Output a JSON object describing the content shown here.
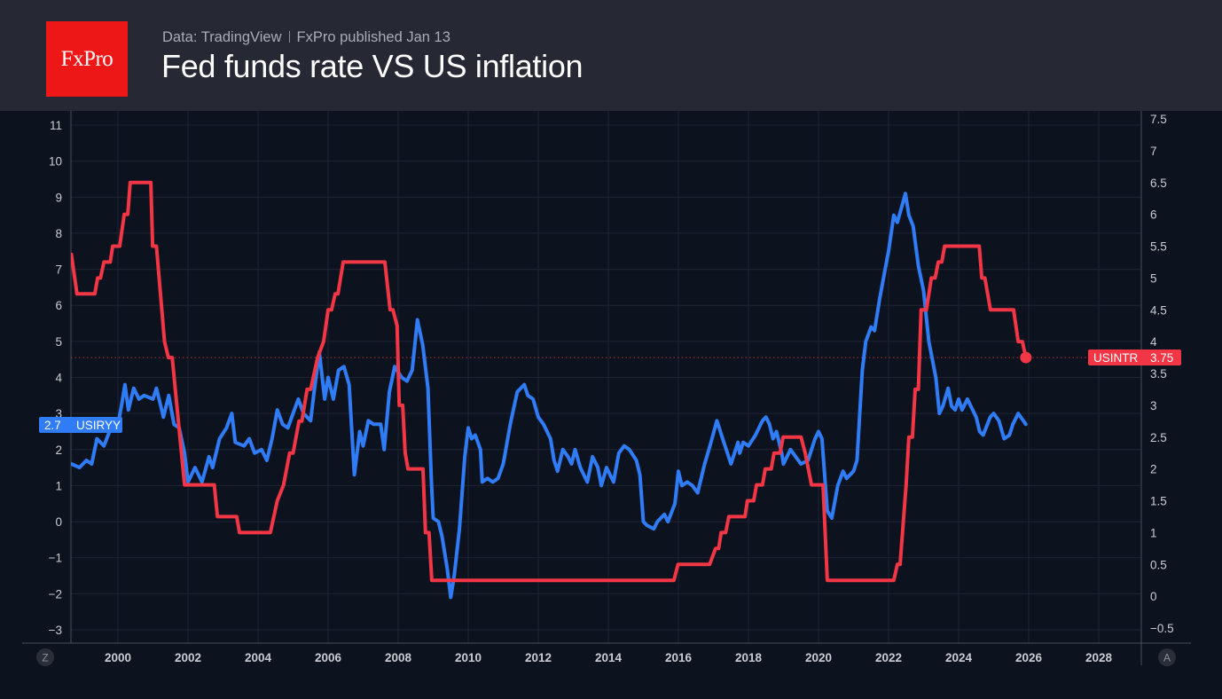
{
  "header": {
    "logo_text": "FxPro",
    "source": "Data: TradingView",
    "published": "FxPro published Jan 13",
    "title": "Fed funds rate VS US inflation"
  },
  "axis_buttons": {
    "left": "Z",
    "right": "A"
  },
  "colors": {
    "inflation": "#2f7cf6",
    "fed_rate": "#f23645",
    "background": "#0c121e",
    "header": "#262833",
    "logo": "#ee1717"
  },
  "chart_data": {
    "type": "line",
    "title": "Fed funds rate VS US inflation",
    "xlabel": "",
    "ylabel": "",
    "grid": true,
    "x_ticks": [
      "2000",
      "2002",
      "2004",
      "2006",
      "2008",
      "2010",
      "2012",
      "2014",
      "2016",
      "2018",
      "2020",
      "2022",
      "2024",
      "2026",
      "2028"
    ],
    "xlim": [
      1998.67,
      2029.2
    ],
    "left_axis": {
      "ylim": [
        -3.3,
        11.4
      ],
      "ticks": [
        "11",
        "10",
        "9",
        "8",
        "7",
        "6",
        "5",
        "4",
        "3",
        "2",
        "1",
        "0",
        "−1",
        "−2",
        "−3"
      ]
    },
    "right_axis": {
      "ylim": [
        -0.55,
        7.6
      ],
      "ticks": [
        "7.5",
        "7",
        "6.5",
        "6",
        "5.5",
        "5",
        "4.5",
        "4",
        "3.5",
        "3",
        "2.5",
        "2",
        "1.5",
        "1",
        "0.5",
        "0",
        "−0.5"
      ]
    },
    "series": [
      {
        "name": "USIRYY",
        "axis": "left",
        "last_value": "2.7",
        "points": [
          [
            1998.67,
            1.6
          ],
          [
            1998.9,
            1.5
          ],
          [
            1999.1,
            1.7
          ],
          [
            1999.25,
            1.6
          ],
          [
            1999.4,
            2.3
          ],
          [
            1999.6,
            2.1
          ],
          [
            1999.8,
            2.6
          ],
          [
            2000.0,
            2.7
          ],
          [
            2000.1,
            3.2
          ],
          [
            2000.2,
            3.8
          ],
          [
            2000.3,
            3.1
          ],
          [
            2000.45,
            3.7
          ],
          [
            2000.6,
            3.4
          ],
          [
            2000.75,
            3.5
          ],
          [
            2001.0,
            3.4
          ],
          [
            2001.1,
            3.7
          ],
          [
            2001.3,
            2.9
          ],
          [
            2001.45,
            3.5
          ],
          [
            2001.6,
            2.7
          ],
          [
            2001.75,
            2.6
          ],
          [
            2001.9,
            1.9
          ],
          [
            2002.0,
            1.1
          ],
          [
            2002.2,
            1.5
          ],
          [
            2002.4,
            1.1
          ],
          [
            2002.6,
            1.8
          ],
          [
            2002.7,
            1.5
          ],
          [
            2002.9,
            2.3
          ],
          [
            2003.1,
            2.6
          ],
          [
            2003.25,
            3.0
          ],
          [
            2003.35,
            2.2
          ],
          [
            2003.6,
            2.1
          ],
          [
            2003.75,
            2.3
          ],
          [
            2003.9,
            1.9
          ],
          [
            2004.1,
            2.0
          ],
          [
            2004.25,
            1.7
          ],
          [
            2004.4,
            2.3
          ],
          [
            2004.55,
            3.1
          ],
          [
            2004.7,
            2.7
          ],
          [
            2004.85,
            2.6
          ],
          [
            2005.0,
            3.0
          ],
          [
            2005.15,
            3.4
          ],
          [
            2005.3,
            3.0
          ],
          [
            2005.5,
            2.8
          ],
          [
            2005.6,
            3.6
          ],
          [
            2005.75,
            4.7
          ],
          [
            2005.9,
            3.4
          ],
          [
            2006.0,
            4.0
          ],
          [
            2006.15,
            3.4
          ],
          [
            2006.3,
            4.2
          ],
          [
            2006.45,
            4.3
          ],
          [
            2006.6,
            3.8
          ],
          [
            2006.75,
            1.3
          ],
          [
            2006.9,
            2.5
          ],
          [
            2007.0,
            2.1
          ],
          [
            2007.15,
            2.8
          ],
          [
            2007.3,
            2.7
          ],
          [
            2007.5,
            2.7
          ],
          [
            2007.6,
            2.0
          ],
          [
            2007.75,
            3.6
          ],
          [
            2007.9,
            4.3
          ],
          [
            2008.1,
            4.0
          ],
          [
            2008.25,
            3.9
          ],
          [
            2008.4,
            4.2
          ],
          [
            2008.55,
            5.6
          ],
          [
            2008.7,
            4.9
          ],
          [
            2008.85,
            3.7
          ],
          [
            2008.95,
            1.1
          ],
          [
            2009.0,
            0.1
          ],
          [
            2009.15,
            0.0
          ],
          [
            2009.25,
            -0.4
          ],
          [
            2009.4,
            -1.3
          ],
          [
            2009.5,
            -2.1
          ],
          [
            2009.6,
            -1.5
          ],
          [
            2009.75,
            -0.2
          ],
          [
            2009.9,
            1.8
          ],
          [
            2010.0,
            2.6
          ],
          [
            2010.1,
            2.3
          ],
          [
            2010.2,
            2.4
          ],
          [
            2010.35,
            2.0
          ],
          [
            2010.4,
            1.1
          ],
          [
            2010.55,
            1.2
          ],
          [
            2010.7,
            1.1
          ],
          [
            2010.85,
            1.2
          ],
          [
            2011.0,
            1.6
          ],
          [
            2011.2,
            2.7
          ],
          [
            2011.4,
            3.6
          ],
          [
            2011.6,
            3.8
          ],
          [
            2011.7,
            3.5
          ],
          [
            2011.85,
            3.4
          ],
          [
            2012.0,
            2.9
          ],
          [
            2012.15,
            2.7
          ],
          [
            2012.35,
            2.3
          ],
          [
            2012.45,
            1.7
          ],
          [
            2012.55,
            1.4
          ],
          [
            2012.7,
            2.0
          ],
          [
            2012.85,
            1.8
          ],
          [
            2012.95,
            1.6
          ],
          [
            2013.05,
            2.0
          ],
          [
            2013.2,
            1.5
          ],
          [
            2013.4,
            1.1
          ],
          [
            2013.55,
            1.8
          ],
          [
            2013.7,
            1.5
          ],
          [
            2013.8,
            1.0
          ],
          [
            2013.95,
            1.5
          ],
          [
            2014.15,
            1.1
          ],
          [
            2014.3,
            1.9
          ],
          [
            2014.45,
            2.1
          ],
          [
            2014.6,
            2.0
          ],
          [
            2014.8,
            1.7
          ],
          [
            2014.9,
            1.3
          ],
          [
            2015.0,
            0.0
          ],
          [
            2015.1,
            -0.1
          ],
          [
            2015.3,
            -0.2
          ],
          [
            2015.4,
            0.0
          ],
          [
            2015.6,
            0.2
          ],
          [
            2015.7,
            0.0
          ],
          [
            2015.9,
            0.5
          ],
          [
            2016.0,
            1.4
          ],
          [
            2016.1,
            1.0
          ],
          [
            2016.25,
            1.1
          ],
          [
            2016.4,
            1.0
          ],
          [
            2016.55,
            0.8
          ],
          [
            2016.75,
            1.6
          ],
          [
            2016.9,
            2.1
          ],
          [
            2017.1,
            2.8
          ],
          [
            2017.3,
            2.2
          ],
          [
            2017.5,
            1.6
          ],
          [
            2017.7,
            2.2
          ],
          [
            2017.75,
            1.9
          ],
          [
            2017.85,
            2.2
          ],
          [
            2018.0,
            2.1
          ],
          [
            2018.2,
            2.4
          ],
          [
            2018.4,
            2.8
          ],
          [
            2018.5,
            2.9
          ],
          [
            2018.6,
            2.7
          ],
          [
            2018.7,
            2.3
          ],
          [
            2018.8,
            2.5
          ],
          [
            2018.95,
            1.9
          ],
          [
            2019.0,
            1.6
          ],
          [
            2019.2,
            2.0
          ],
          [
            2019.35,
            1.8
          ],
          [
            2019.5,
            1.6
          ],
          [
            2019.7,
            1.7
          ],
          [
            2019.9,
            2.3
          ],
          [
            2020.0,
            2.5
          ],
          [
            2020.1,
            2.3
          ],
          [
            2020.25,
            0.3
          ],
          [
            2020.38,
            0.1
          ],
          [
            2020.55,
            1.0
          ],
          [
            2020.7,
            1.4
          ],
          [
            2020.8,
            1.2
          ],
          [
            2021.0,
            1.4
          ],
          [
            2021.1,
            1.7
          ],
          [
            2021.25,
            4.2
          ],
          [
            2021.35,
            5.0
          ],
          [
            2021.5,
            5.4
          ],
          [
            2021.6,
            5.3
          ],
          [
            2021.75,
            6.2
          ],
          [
            2021.9,
            7.0
          ],
          [
            2022.0,
            7.5
          ],
          [
            2022.15,
            8.5
          ],
          [
            2022.25,
            8.3
          ],
          [
            2022.48,
            9.1
          ],
          [
            2022.58,
            8.5
          ],
          [
            2022.7,
            8.2
          ],
          [
            2022.85,
            7.1
          ],
          [
            2023.0,
            6.4
          ],
          [
            2023.15,
            5.0
          ],
          [
            2023.35,
            4.0
          ],
          [
            2023.45,
            3.0
          ],
          [
            2023.55,
            3.2
          ],
          [
            2023.7,
            3.7
          ],
          [
            2023.8,
            3.2
          ],
          [
            2023.9,
            3.1
          ],
          [
            2024.0,
            3.4
          ],
          [
            2024.1,
            3.1
          ],
          [
            2024.25,
            3.4
          ],
          [
            2024.5,
            2.9
          ],
          [
            2024.6,
            2.5
          ],
          [
            2024.7,
            2.4
          ],
          [
            2024.9,
            2.9
          ],
          [
            2025.0,
            3.0
          ],
          [
            2025.15,
            2.8
          ],
          [
            2025.3,
            2.3
          ],
          [
            2025.45,
            2.4
          ],
          [
            2025.55,
            2.7
          ],
          [
            2025.7,
            3.0
          ],
          [
            2025.92,
            2.7
          ]
        ]
      },
      {
        "name": "USINTR",
        "axis": "right",
        "last_value": "3.75",
        "points": [
          [
            1998.67,
            5.37
          ],
          [
            1998.83,
            4.75
          ],
          [
            1999.34,
            4.75
          ],
          [
            1999.42,
            5.0
          ],
          [
            1999.5,
            5.0
          ],
          [
            1999.6,
            5.25
          ],
          [
            1999.78,
            5.25
          ],
          [
            1999.85,
            5.5
          ],
          [
            2000.05,
            5.5
          ],
          [
            2000.18,
            6.0
          ],
          [
            2000.28,
            6.0
          ],
          [
            2000.35,
            6.5
          ],
          [
            2000.94,
            6.5
          ],
          [
            2000.99,
            5.5
          ],
          [
            2001.1,
            5.5
          ],
          [
            2001.33,
            4.0
          ],
          [
            2001.44,
            3.75
          ],
          [
            2001.55,
            3.75
          ],
          [
            2001.9,
            1.75
          ],
          [
            2002.75,
            1.75
          ],
          [
            2002.84,
            1.25
          ],
          [
            2003.39,
            1.25
          ],
          [
            2003.47,
            1.0
          ],
          [
            2004.35,
            1.0
          ],
          [
            2004.45,
            1.25
          ],
          [
            2004.55,
            1.5
          ],
          [
            2004.73,
            1.75
          ],
          [
            2004.9,
            2.25
          ],
          [
            2005.0,
            2.25
          ],
          [
            2005.17,
            2.75
          ],
          [
            2005.25,
            2.75
          ],
          [
            2005.4,
            3.25
          ],
          [
            2005.5,
            3.25
          ],
          [
            2005.7,
            3.75
          ],
          [
            2005.87,
            4.0
          ],
          [
            2006.0,
            4.5
          ],
          [
            2006.1,
            4.5
          ],
          [
            2006.2,
            4.75
          ],
          [
            2006.28,
            4.75
          ],
          [
            2006.43,
            5.25
          ],
          [
            2007.62,
            5.25
          ],
          [
            2007.77,
            4.5
          ],
          [
            2007.85,
            4.5
          ],
          [
            2007.97,
            4.25
          ],
          [
            2008.03,
            3.0
          ],
          [
            2008.13,
            3.0
          ],
          [
            2008.2,
            2.25
          ],
          [
            2008.28,
            2.0
          ],
          [
            2008.71,
            2.0
          ],
          [
            2008.78,
            1.0
          ],
          [
            2008.88,
            1.0
          ],
          [
            2008.96,
            0.25
          ],
          [
            2015.87,
            0.25
          ],
          [
            2015.99,
            0.5
          ],
          [
            2016.89,
            0.5
          ],
          [
            2017.06,
            0.75
          ],
          [
            2017.15,
            0.75
          ],
          [
            2017.22,
            1.0
          ],
          [
            2017.35,
            1.0
          ],
          [
            2017.44,
            1.25
          ],
          [
            2017.9,
            1.25
          ],
          [
            2017.97,
            1.5
          ],
          [
            2018.15,
            1.5
          ],
          [
            2018.23,
            1.75
          ],
          [
            2018.4,
            1.75
          ],
          [
            2018.48,
            2.0
          ],
          [
            2018.65,
            2.0
          ],
          [
            2018.73,
            2.25
          ],
          [
            2018.9,
            2.25
          ],
          [
            2018.99,
            2.5
          ],
          [
            2019.5,
            2.5
          ],
          [
            2019.62,
            2.25
          ],
          [
            2019.8,
            1.75
          ],
          [
            2020.13,
            1.75
          ],
          [
            2020.25,
            0.25
          ],
          [
            2022.15,
            0.25
          ],
          [
            2022.25,
            0.5
          ],
          [
            2022.33,
            0.5
          ],
          [
            2022.5,
            1.75
          ],
          [
            2022.58,
            2.5
          ],
          [
            2022.68,
            2.5
          ],
          [
            2022.76,
            3.25
          ],
          [
            2022.85,
            3.25
          ],
          [
            2022.93,
            4.5
          ],
          [
            2023.08,
            4.5
          ],
          [
            2023.22,
            5.0
          ],
          [
            2023.33,
            5.0
          ],
          [
            2023.42,
            5.25
          ],
          [
            2023.52,
            5.25
          ],
          [
            2023.6,
            5.5
          ],
          [
            2024.59,
            5.5
          ],
          [
            2024.66,
            5.0
          ],
          [
            2024.75,
            5.0
          ],
          [
            2024.91,
            4.5
          ],
          [
            2025.57,
            4.5
          ],
          [
            2025.7,
            4.0
          ],
          [
            2025.82,
            4.0
          ],
          [
            2025.92,
            3.75
          ]
        ]
      }
    ]
  }
}
